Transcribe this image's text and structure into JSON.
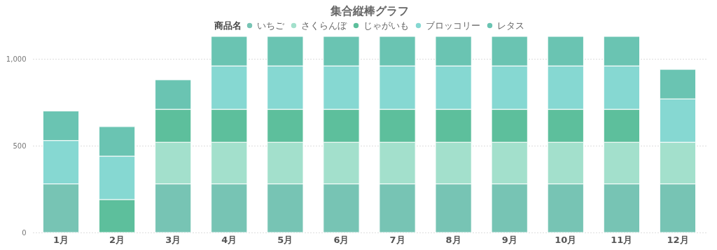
{
  "chart_data": {
    "type": "bar",
    "title": "集合縦棒グラフ",
    "legend_title": "商品名",
    "stacked": true,
    "legend": "top",
    "grid": "y",
    "categories": [
      "1月",
      "2月",
      "3月",
      "4月",
      "5月",
      "6月",
      "7月",
      "8月",
      "9月",
      "10月",
      "11月",
      "12月"
    ],
    "ylim": [
      0,
      1130
    ],
    "yticks": [
      0,
      500,
      {
        "value": 1000,
        "label": "1,000"
      }
    ],
    "series": [
      {
        "name": "いちご",
        "color": "#77c4b4",
        "values": [
          280,
          null,
          280,
          280,
          280,
          280,
          280,
          280,
          280,
          280,
          280,
          280
        ]
      },
      {
        "name": "さくらんぼ",
        "color": "#a3e0cc",
        "values": [
          null,
          null,
          240,
          240,
          240,
          240,
          240,
          240,
          240,
          240,
          240,
          240
        ]
      },
      {
        "name": "じゃがいも",
        "color": "#5dbf9c",
        "values": [
          null,
          190,
          190,
          190,
          190,
          190,
          190,
          190,
          190,
          190,
          190,
          null
        ]
      },
      {
        "name": "ブロッコリー",
        "color": "#86d8d2",
        "values": [
          250,
          250,
          null,
          250,
          250,
          250,
          250,
          250,
          250,
          250,
          250,
          250
        ]
      },
      {
        "name": "レタス",
        "color": "#6ac4b2",
        "values": [
          170,
          170,
          170,
          170,
          170,
          170,
          170,
          170,
          170,
          170,
          170,
          170
        ]
      }
    ]
  }
}
